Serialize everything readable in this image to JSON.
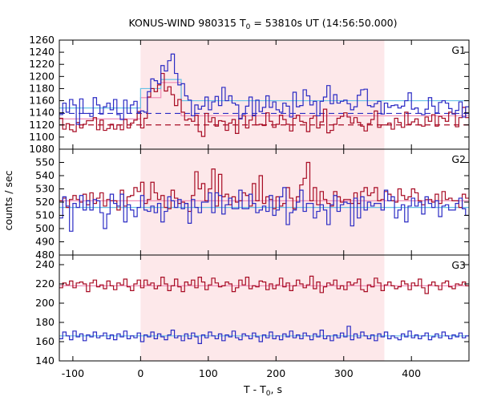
{
  "chart_data": {
    "type": "line",
    "title_main": "KONUS-WIND 980315 T",
    "title_sub": "0",
    "title_rest": " = 53810s UT (14:56:50.000)",
    "xlabel_main": "T - T",
    "xlabel_sub": "0",
    "xlabel_rest": ", s",
    "ylabel": "counts / sec",
    "xlim": [
      -120,
      485
    ],
    "x_ticks": [
      -100,
      0,
      100,
      200,
      300,
      400
    ],
    "x_tick_labels": [
      "-100",
      "0",
      "100",
      "200",
      "300",
      "400"
    ],
    "highlight_interval": [
      0,
      360
    ],
    "colors": {
      "highlight": "#fde8ea",
      "red_series": "#a80c24",
      "blue_series": "#2b2bc4",
      "pink_fit": "#ee8fb8",
      "cyan_fit": "#66c2e6"
    },
    "panels": [
      {
        "label": "G1",
        "ylim": [
          1080,
          1260
        ],
        "y_ticks": [
          1080,
          1100,
          1120,
          1140,
          1160,
          1180,
          1200,
          1220,
          1240,
          1260
        ],
        "y_tick_labels": [
          "1080",
          "1100",
          "1120",
          "1140",
          "1160",
          "1180",
          "1200",
          "1220",
          "1240",
          "1260"
        ],
        "dashed_levels": [
          {
            "color": "blue",
            "value": 1139
          },
          {
            "color": "red",
            "value": 1120
          }
        ],
        "fit_levels": [
          {
            "color": "pink",
            "x": [
              -120,
              0,
              0,
              30,
              30,
              60,
              60,
              485
            ],
            "y": [
              1130,
              1130,
              1165,
              1165,
              1190,
              1190,
              1135,
              1135
            ]
          },
          {
            "color": "cyan",
            "x": [
              -120,
              0,
              0,
              30,
              30,
              60,
              60,
              485
            ],
            "y": [
              1148,
              1148,
              1180,
              1180,
              1195,
              1195,
              1160,
              1160
            ]
          }
        ],
        "red_values": [
          1131,
          1113,
          1122,
          1112,
          1109,
          1124,
          1115,
          1121,
          1127,
          1127,
          1132,
          1112,
          1128,
          1111,
          1114,
          1121,
          1113,
          1120,
          1112,
          1129,
          1115,
          1123,
          1128,
          1142,
          1115,
          1131,
          1166,
          1180,
          1175,
          1186,
          1205,
          1176,
          1183,
          1170,
          1152,
          1162,
          1141,
          1128,
          1130,
          1126,
          1136,
          1109,
          1101,
          1139,
          1125,
          1132,
          1118,
          1127,
          1126,
          1111,
          1123,
          1129,
          1106,
          1131,
          1135,
          1115,
          1128,
          1136,
          1120,
          1121,
          1119,
          1140,
          1126,
          1116,
          1121,
          1136,
          1129,
          1121,
          1110,
          1131,
          1136,
          1126,
          1124,
          1109,
          1131,
          1135,
          1115,
          1125,
          1146,
          1107,
          1111,
          1121,
          1131,
          1134,
          1140,
          1133,
          1123,
          1132,
          1124,
          1118,
          1110,
          1122,
          1129,
          1143,
          1116,
          1120,
          1120,
          1123,
          1113,
          1131,
          1124,
          1116,
          1141,
          1121,
          1125,
          1130,
          1120,
          1118,
          1133,
          1126,
          1137,
          1118,
          1134,
          1131,
          1126,
          1141,
          1139,
          1117,
          1132,
          1149,
          1132
        ],
        "blue_values": [
          1137,
          1156,
          1141,
          1162,
          1153,
          1121,
          1163,
          1139,
          1139,
          1134,
          1165,
          1153,
          1138,
          1150,
          1156,
          1145,
          1162,
          1137,
          1129,
          1161,
          1139,
          1153,
          1159,
          1140,
          1143,
          1141,
          1175,
          1196,
          1193,
          1188,
          1218,
          1209,
          1226,
          1237,
          1205,
          1186,
          1188,
          1168,
          1161,
          1135,
          1153,
          1146,
          1151,
          1166,
          1145,
          1158,
          1167,
          1152,
          1182,
          1160,
          1168,
          1156,
          1153,
          1130,
          1138,
          1151,
          1166,
          1135,
          1161,
          1142,
          1149,
          1168,
          1149,
          1158,
          1145,
          1141,
          1156,
          1151,
          1133,
          1174,
          1150,
          1152,
          1178,
          1168,
          1153,
          1159,
          1135,
          1159,
          1166,
          1185,
          1155,
          1170,
          1156,
          1159,
          1161,
          1155,
          1145,
          1150,
          1169,
          1178,
          1179,
          1152,
          1150,
          1155,
          1159,
          1138,
          1156,
          1149,
          1152,
          1153,
          1148,
          1151,
          1160,
          1173,
          1146,
          1148,
          1139,
          1137,
          1146,
          1165,
          1151,
          1140,
          1157,
          1160,
          1156,
          1147,
          1138,
          1144,
          1158,
          1133,
          1150
        ]
      },
      {
        "label": "G2",
        "ylim": [
          480,
          560
        ],
        "y_ticks": [
          480,
          490,
          500,
          510,
          520,
          530,
          540,
          550
        ],
        "y_tick_labels": [
          "480",
          "490",
          "500",
          "510",
          "520",
          "530",
          "540",
          "550"
        ],
        "dashed_levels": [],
        "fit_levels": [
          {
            "color": "pink",
            "x": [
              -120,
              485
            ],
            "y": [
              521,
              521
            ]
          },
          {
            "color": "cyan",
            "x": [
              -120,
              485
            ],
            "y": [
              516,
              516
            ]
          }
        ],
        "red_values": [
          521,
          523,
          516,
          522,
          525,
          522,
          520,
          526,
          518,
          527,
          519,
          523,
          527,
          517,
          522,
          521,
          521,
          514,
          529,
          517,
          524,
          525,
          531,
          528,
          535,
          519,
          522,
          535,
          527,
          522,
          525,
          516,
          515,
          529,
          523,
          519,
          520,
          519,
          513,
          525,
          543,
          530,
          534,
          521,
          530,
          545,
          517,
          541,
          524,
          526,
          518,
          524,
          520,
          521,
          527,
          525,
          517,
          534,
          521,
          540,
          519,
          524,
          522,
          515,
          524,
          517,
          519,
          531,
          523,
          515,
          524,
          533,
          538,
          550,
          521,
          531,
          518,
          528,
          522,
          519,
          517,
          528,
          524,
          520,
          522,
          522,
          519,
          527,
          519,
          528,
          531,
          525,
          527,
          531,
          521,
          522,
          528,
          526,
          521,
          520,
          530,
          525,
          522,
          524,
          530,
          527,
          521,
          518,
          522,
          522,
          520,
          526,
          519,
          528,
          522,
          523,
          521,
          521,
          516,
          526,
          523
        ],
        "blue_values": [
          508,
          524,
          517,
          498,
          519,
          516,
          525,
          514,
          521,
          514,
          522,
          521,
          512,
          500,
          511,
          526,
          519,
          517,
          526,
          505,
          518,
          514,
          509,
          516,
          525,
          514,
          513,
          517,
          512,
          519,
          505,
          513,
          524,
          521,
          516,
          522,
          515,
          519,
          504,
          522,
          516,
          512,
          520,
          520,
          527,
          512,
          527,
          525,
          511,
          518,
          523,
          515,
          515,
          529,
          515,
          515,
          526,
          519,
          512,
          514,
          517,
          513,
          525,
          510,
          514,
          524,
          531,
          503,
          512,
          514,
          520,
          529,
          513,
          519,
          519,
          508,
          513,
          518,
          514,
          503,
          518,
          525,
          513,
          518,
          520,
          519,
          502,
          523,
          508,
          524,
          514,
          520,
          517,
          519,
          519,
          514,
          529,
          521,
          524,
          508,
          514,
          518,
          505,
          517,
          523,
          517,
          520,
          511,
          524,
          519,
          516,
          521,
          509,
          517,
          518,
          514,
          514,
          519,
          523,
          515,
          510
        ]
      },
      {
        "label": "G3",
        "ylim": [
          140,
          250
        ],
        "y_ticks": [
          140,
          160,
          180,
          200,
          220,
          240
        ],
        "y_tick_labels": [
          "140",
          "160",
          "180",
          "200",
          "220",
          "240"
        ],
        "dashed_levels": [],
        "fit_levels": [
          {
            "color": "pink",
            "x": [
              -120,
              485
            ],
            "y": [
              218,
              218
            ]
          },
          {
            "color": "cyan",
            "x": [
              -120,
              485
            ],
            "y": [
              166,
              166
            ]
          }
        ],
        "red_values": [
          216,
          221,
          219,
          223,
          216,
          221,
          222,
          220,
          212,
          221,
          224,
          217,
          219,
          215,
          223,
          218,
          214,
          221,
          219,
          225,
          217,
          213,
          220,
          224,
          216,
          224,
          219,
          221,
          215,
          218,
          227,
          220,
          213,
          218,
          225,
          217,
          212,
          222,
          219,
          224,
          216,
          227,
          222,
          214,
          219,
          226,
          221,
          217,
          218,
          222,
          220,
          212,
          216,
          224,
          219,
          227,
          215,
          218,
          217,
          223,
          222,
          214,
          220,
          215,
          219,
          226,
          217,
          221,
          213,
          218,
          224,
          220,
          216,
          219,
          228,
          215,
          222,
          211,
          217,
          221,
          219,
          224,
          215,
          218,
          214,
          222,
          219,
          221,
          225,
          214,
          212,
          219,
          217,
          226,
          221,
          213,
          219,
          222,
          218,
          215,
          217,
          223,
          220,
          214,
          221,
          218,
          225,
          216,
          210,
          219,
          222,
          218,
          214,
          221,
          223,
          217,
          215,
          220,
          219,
          222,
          218
        ],
        "blue_values": [
          163,
          170,
          166,
          162,
          171,
          165,
          168,
          161,
          167,
          165,
          170,
          164,
          166,
          169,
          163,
          167,
          162,
          168,
          165,
          171,
          163,
          166,
          164,
          169,
          160,
          167,
          165,
          170,
          163,
          168,
          165,
          162,
          167,
          172,
          164,
          166,
          161,
          168,
          163,
          169,
          165,
          158,
          167,
          164,
          170,
          166,
          163,
          168,
          161,
          167,
          165,
          171,
          164,
          162,
          168,
          166,
          163,
          169,
          165,
          160,
          167,
          164,
          170,
          163,
          166,
          162,
          168,
          165,
          171,
          164,
          167,
          163,
          169,
          166,
          162,
          168,
          165,
          172,
          163,
          166,
          161,
          167,
          164,
          169,
          165,
          176,
          162,
          168,
          164,
          170,
          166,
          163,
          167,
          161,
          168,
          165,
          170,
          163,
          166,
          164,
          162,
          168,
          165,
          171,
          164,
          167,
          163,
          166,
          169,
          162,
          165,
          168,
          164,
          170,
          166,
          163,
          167,
          165,
          169,
          164,
          166
        ]
      }
    ]
  }
}
